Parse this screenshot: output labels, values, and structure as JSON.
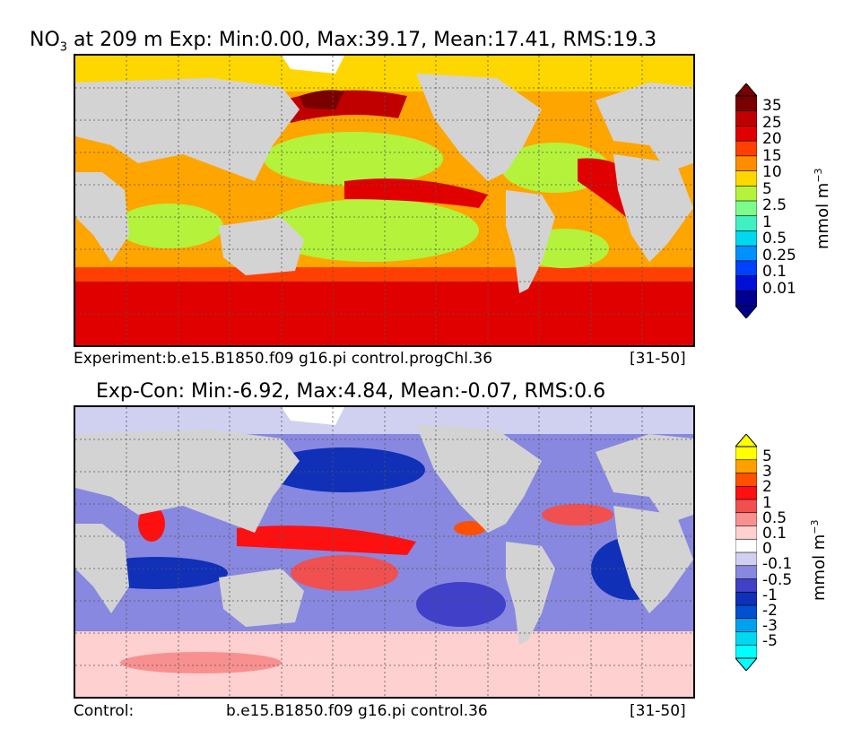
{
  "top": {
    "title_var": "NO",
    "title_sub": "3",
    "title_rest": " at 209 m Exp: Min:0.00, Max:39.17, Mean:17.41, RMS:19.3",
    "caption_left": "Experiment:b.e15.B1850.f09 g16.pi control.progChl.36",
    "caption_right": "[31-50]",
    "colorbar": {
      "ticks": [
        "35",
        "25",
        "20",
        "15",
        "10",
        "5",
        "2.5",
        "1",
        "0.5",
        "0.25",
        "0.1",
        "0.01"
      ],
      "colors_top_to_bottom": [
        "#7a0000",
        "#c00000",
        "#e00000",
        "#ff4000",
        "#ff8c00",
        "#ffd700",
        "#b4f23c",
        "#7cfc8a",
        "#40f0c0",
        "#00d8f0",
        "#0090ff",
        "#0040ff",
        "#0010d8",
        "#000090"
      ],
      "unit": "mmol m",
      "unit_sup": "−3"
    }
  },
  "bottom": {
    "title": "Exp-Con: Min:-6.92, Max:4.84, Mean:-0.07, RMS:0.6",
    "caption_left": "Control:",
    "caption_mid": "b.e15.B1850.f09 g16.pi control.36",
    "caption_right": "[31-50]",
    "colorbar": {
      "ticks": [
        "5",
        "3",
        "2",
        "1",
        "0.5",
        "0.1",
        "0",
        "-0.1",
        "-0.5",
        "-1",
        "-2",
        "-3",
        "-5"
      ],
      "colors_top_to_bottom": [
        "#ffff00",
        "#ffa000",
        "#ff5000",
        "#ff1010",
        "#f05050",
        "#f89090",
        "#ffd0d0",
        "#ffffff",
        "#d0d0f0",
        "#8888e0",
        "#4040c8",
        "#1030b8",
        "#0050d0",
        "#00a0f0",
        "#00d8f0",
        "#00ffff"
      ],
      "unit": "mmol m",
      "unit_sup": "−3"
    }
  },
  "colors": {
    "land": "#d3d3d3",
    "ice": "#ffffff",
    "grid": "#555555"
  }
}
